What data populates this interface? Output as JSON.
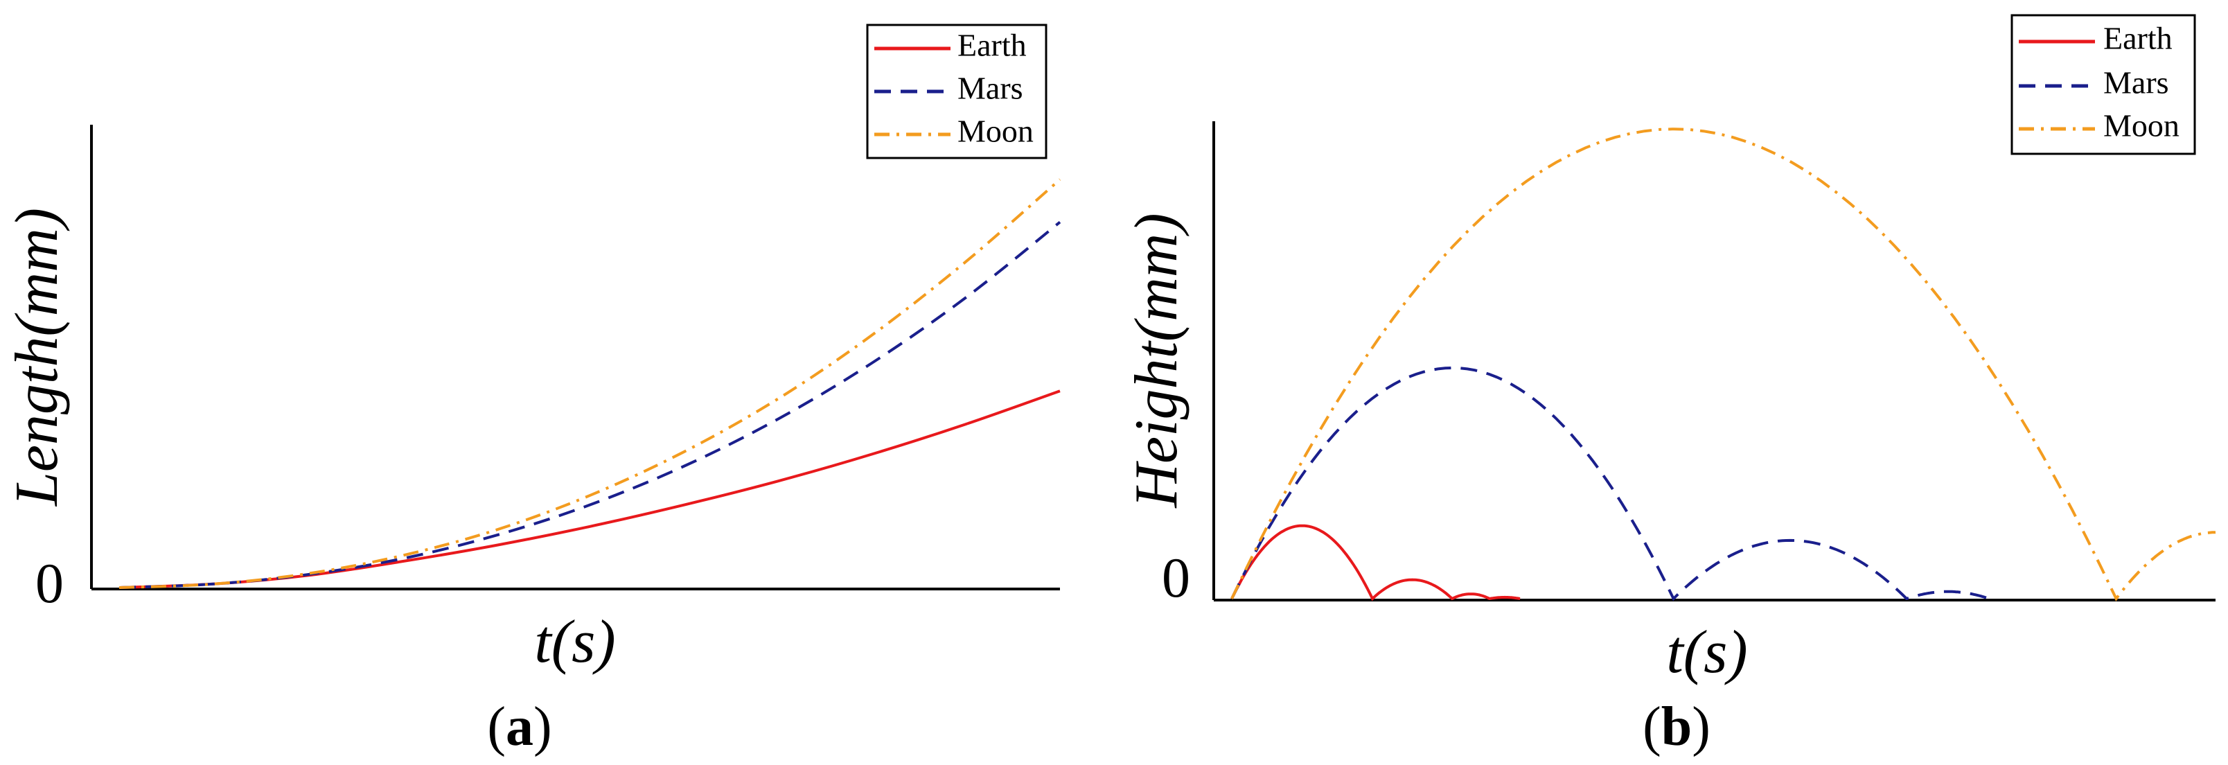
{
  "chart_data": [
    {
      "type": "line",
      "panel_label": "a",
      "xlabel": "t(s)",
      "ylabel": "Length(mm)",
      "yticks": [
        "0"
      ],
      "legend": {
        "position": "top-right",
        "entries": [
          "Earth",
          "Mars",
          "Moon"
        ]
      },
      "xlim": [
        0,
        1
      ],
      "ylim": [
        0,
        1
      ],
      "series": [
        {
          "name": "Earth",
          "color": "#e8191c",
          "dash": "solid",
          "x": [
            0.0,
            0.1,
            0.2,
            0.3,
            0.4,
            0.5,
            0.6,
            0.7,
            0.8,
            0.9,
            1.0
          ],
          "y": [
            0.0,
            0.008,
            0.027,
            0.058,
            0.094,
            0.136,
            0.184,
            0.237,
            0.297,
            0.364,
            0.438
          ]
        },
        {
          "name": "Mars",
          "color": "#1a1f8c",
          "dash": "dashed",
          "x": [
            0.0,
            0.1,
            0.2,
            0.3,
            0.4,
            0.5,
            0.6,
            0.7,
            0.8,
            0.9,
            1.0
          ],
          "y": [
            0.0,
            0.008,
            0.029,
            0.064,
            0.116,
            0.184,
            0.27,
            0.375,
            0.5,
            0.646,
            0.814
          ]
        },
        {
          "name": "Moon",
          "color": "#f39c1f",
          "dash": "dashdot",
          "x": [
            0.0,
            0.1,
            0.2,
            0.3,
            0.4,
            0.5,
            0.6,
            0.7,
            0.8,
            0.9,
            1.0
          ],
          "y": [
            0.0,
            0.008,
            0.031,
            0.071,
            0.128,
            0.205,
            0.302,
            0.42,
            0.562,
            0.726,
            0.909
          ]
        }
      ]
    },
    {
      "type": "line",
      "panel_label": "b",
      "xlabel": "t(s)",
      "ylabel": "Height(mm)",
      "yticks": [
        "0"
      ],
      "legend": {
        "position": "top-right",
        "entries": [
          "Earth",
          "Mars",
          "Moon"
        ]
      },
      "xlim": [
        0,
        1
      ],
      "ylim": [
        0,
        1
      ],
      "series": [
        {
          "name": "Earth",
          "color": "#e8191c",
          "dash": "solid",
          "bounces": [
            {
              "start": 0.0,
              "end": 0.143,
              "peak": 0.154
            },
            {
              "start": 0.143,
              "end": 0.224,
              "peak": 0.04
            },
            {
              "start": 0.224,
              "end": 0.262,
              "peak": 0.01
            },
            {
              "start": 0.262,
              "end": 0.293,
              "peak": 0.003
            }
          ]
        },
        {
          "name": "Mars",
          "color": "#1a1f8c",
          "dash": "dashed",
          "bounces": [
            {
              "start": 0.0,
              "end": 0.449,
              "peak": 0.487
            },
            {
              "start": 0.449,
              "end": 0.686,
              "peak": 0.123
            },
            {
              "start": 0.686,
              "end": 0.77,
              "peak": 0.015
            }
          ]
        },
        {
          "name": "Moon",
          "color": "#f39c1f",
          "dash": "dashdot",
          "bounces": [
            {
              "start": 0.0,
              "end": 0.899,
              "peak": 0.991
            },
            {
              "start": 0.899,
              "end": 1.0,
              "peak": 0.14,
              "partial": true
            }
          ]
        }
      ]
    }
  ],
  "panel_labels": [
    "a",
    "b"
  ]
}
